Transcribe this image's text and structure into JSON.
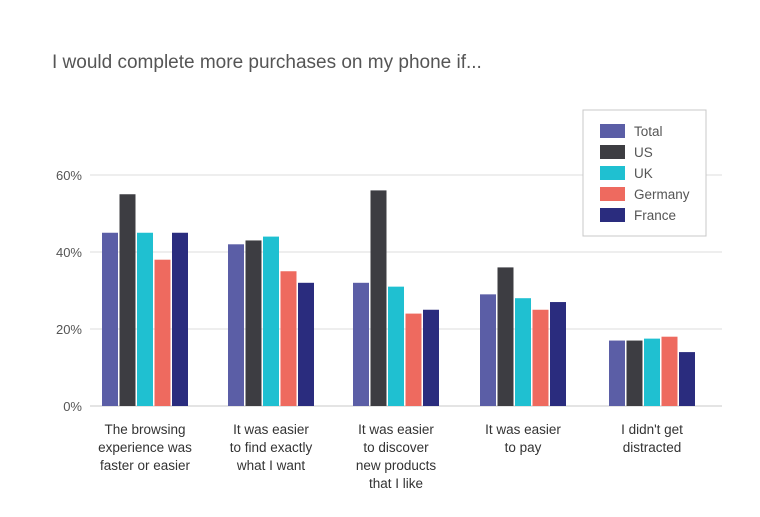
{
  "chart_data": {
    "type": "bar",
    "title": "I would complete more purchases on my phone if...",
    "xlabel": "",
    "ylabel": "",
    "ylim": [
      0,
      60
    ],
    "yticks": [
      0,
      20,
      40,
      60
    ],
    "ytick_labels": [
      "0%",
      "20%",
      "40%",
      "60%"
    ],
    "grid": true,
    "legend_position": "top-right",
    "categories": [
      [
        "The browsing",
        "experience was",
        "faster or easier"
      ],
      [
        "It was easier",
        "to find exactly",
        "what I want"
      ],
      [
        "It was easier",
        "to discover",
        "new products",
        "that I like"
      ],
      [
        "It was easier",
        "to pay"
      ],
      [
        "I didn't get",
        "distracted"
      ]
    ],
    "series": [
      {
        "name": "Total",
        "color": "#5b5ea6",
        "values": [
          45,
          42,
          32,
          29,
          17
        ]
      },
      {
        "name": "US",
        "color": "#3d3d42",
        "values": [
          55,
          43,
          56,
          36,
          17
        ]
      },
      {
        "name": "UK",
        "color": "#1fc0d1",
        "values": [
          45,
          44,
          31,
          28,
          17.5
        ]
      },
      {
        "name": "Germany",
        "color": "#ee6a5f",
        "values": [
          38,
          35,
          24,
          25,
          18
        ]
      },
      {
        "name": "France",
        "color": "#2a2c7e",
        "values": [
          45,
          32,
          25,
          27,
          14
        ]
      }
    ]
  }
}
